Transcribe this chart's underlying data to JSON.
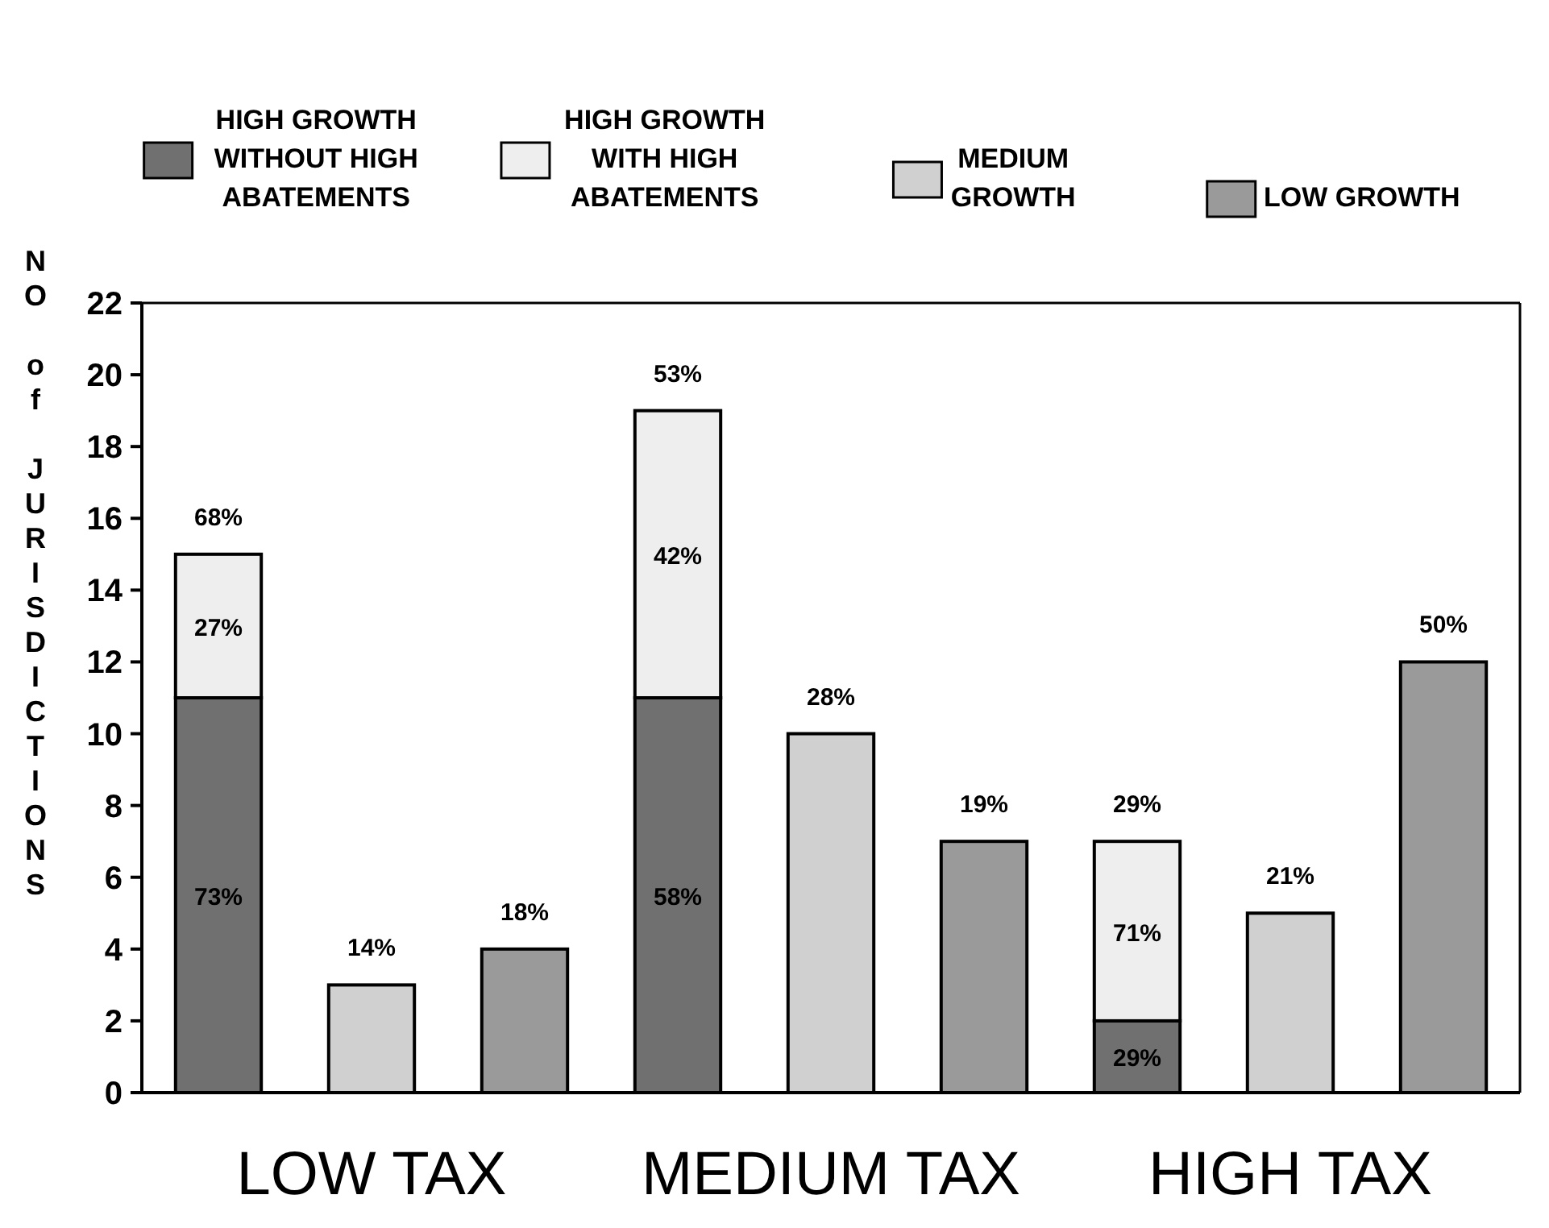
{
  "chart_data": {
    "type": "bar",
    "stacked": true,
    "categories": [
      null,
      "LOW TAX",
      null,
      null,
      "MEDIUM TAX",
      null,
      null,
      "HIGH TAX",
      null
    ],
    "ylabel": "NO of JURISDICTIONS",
    "ylim": [
      0,
      22
    ],
    "yticks": [
      0,
      2,
      4,
      6,
      8,
      10,
      12,
      14,
      16,
      18,
      20,
      22
    ],
    "grid": false,
    "legend": "top",
    "series": [
      {
        "name": "HIGH GROWTH WITHOUT HIGH ABATEMENTS",
        "color": "#707070",
        "values": [
          11,
          null,
          null,
          11,
          null,
          null,
          2,
          null,
          null
        ]
      },
      {
        "name": "HIGH GROWTH WITH HIGH ABATEMENTS",
        "color": "#eeeeee",
        "values": [
          4,
          null,
          null,
          8,
          null,
          null,
          5,
          null,
          null
        ]
      },
      {
        "name": "MEDIUM GROWTH",
        "color": "#d0d0d0",
        "values": [
          null,
          3,
          null,
          null,
          10,
          null,
          null,
          5,
          null
        ]
      },
      {
        "name": "LOW GROWTH",
        "color": "#9a9a9a",
        "values": [
          null,
          null,
          4,
          null,
          null,
          7,
          null,
          null,
          12
        ]
      }
    ],
    "annotations": [
      "73%",
      "27%",
      "68%",
      "14%",
      "18%",
      "58%",
      "42%",
      "53%",
      "28%",
      "19%",
      "29%",
      "71%",
      "29%",
      "21%",
      "50%"
    ]
  }
}
